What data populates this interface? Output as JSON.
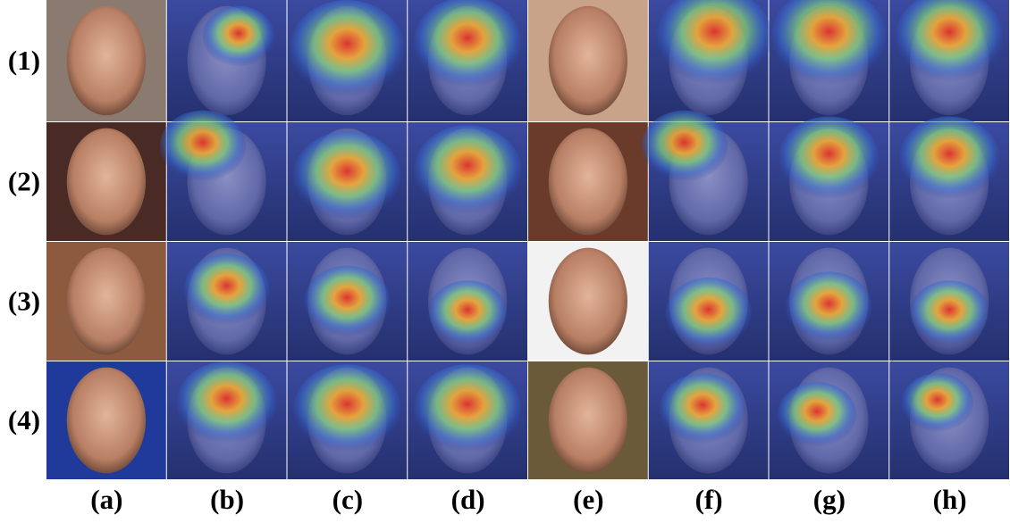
{
  "figure": {
    "row_labels": [
      "(1)",
      "(2)",
      "(3)",
      "(4)"
    ],
    "column_labels": [
      "(a)",
      "(b)",
      "(c)",
      "(d)",
      "(e)",
      "(f)",
      "(g)",
      "(h)"
    ]
  }
}
